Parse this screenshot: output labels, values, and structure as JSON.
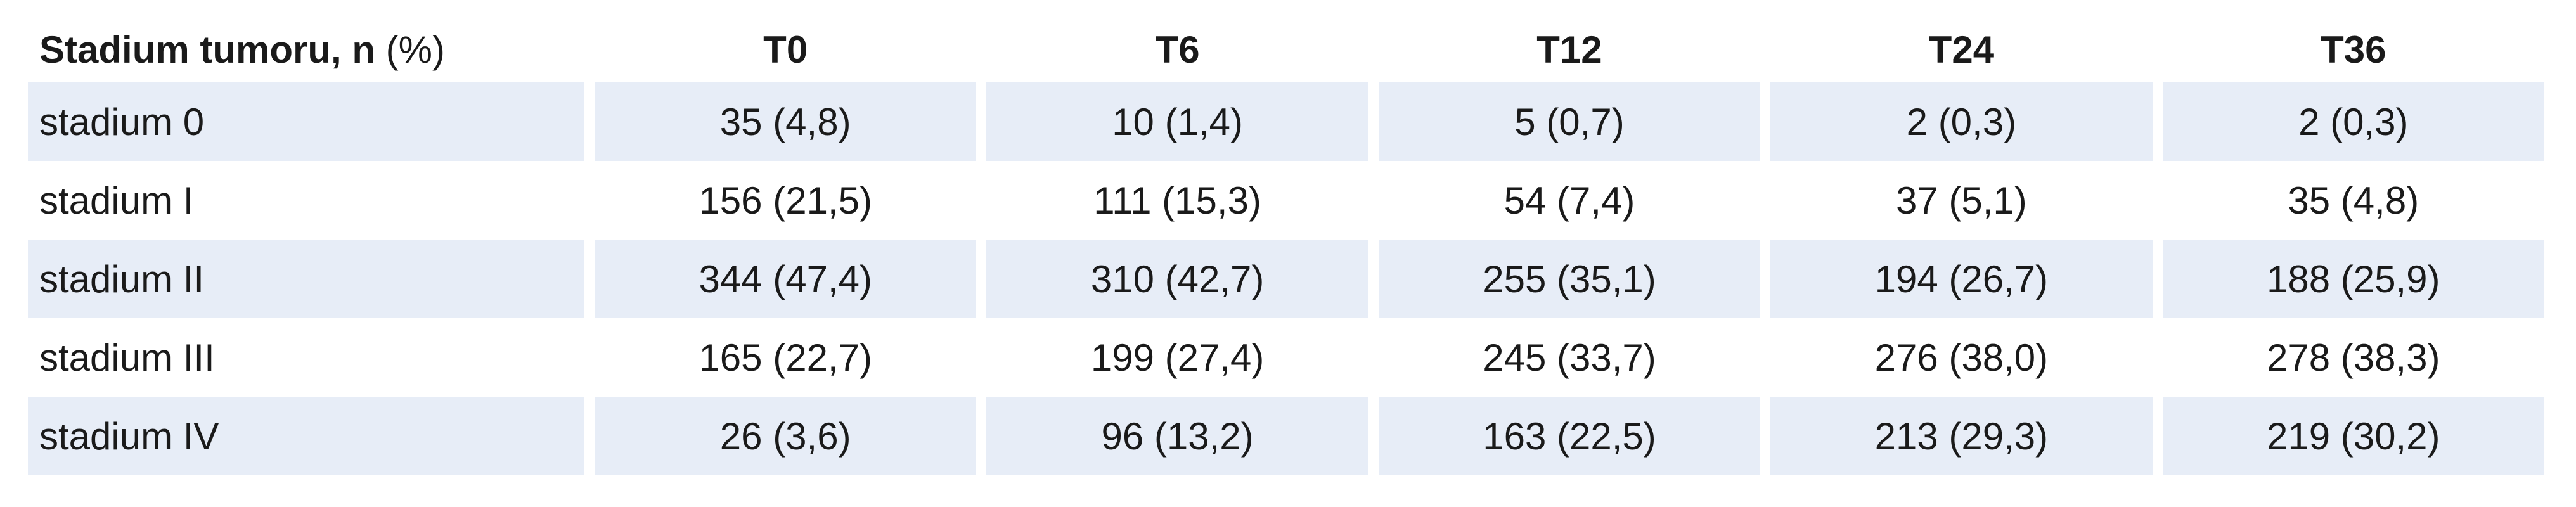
{
  "table": {
    "header": {
      "first_bold": "Stadium tumoru, n",
      "first_normal": " (%)",
      "columns": [
        "T0",
        "T6",
        "T12",
        "T24",
        "T36"
      ]
    },
    "rows": [
      {
        "label": "stadium 0",
        "cells": [
          "35 (4,8)",
          "10 (1,4)",
          "5 (0,7)",
          "2 (0,3)",
          "2 (0,3)"
        ]
      },
      {
        "label": "stadium I",
        "cells": [
          "156 (21,5)",
          "111 (15,3)",
          "54 (7,4)",
          "37 (5,1)",
          "35 (4,8)"
        ]
      },
      {
        "label": "stadium II",
        "cells": [
          "344 (47,4)",
          "310 (42,7)",
          "255 (35,1)",
          "194 (26,7)",
          "188 (25,9)"
        ]
      },
      {
        "label": "stadium III",
        "cells": [
          "165 (22,7)",
          "199 (27,4)",
          "245 (33,7)",
          "276 (38,0)",
          "278 (38,3)"
        ]
      },
      {
        "label": "stadium IV",
        "cells": [
          "26 (3,6)",
          "96 (13,2)",
          "163 (22,5)",
          "213 (29,3)",
          "219 (30,2)"
        ]
      }
    ],
    "colors": {
      "shaded_row": "#e7edf7",
      "text": "#1a1a1a"
    }
  }
}
